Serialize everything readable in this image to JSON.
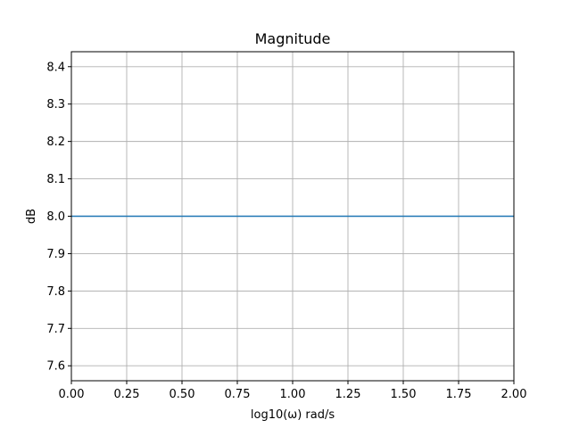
{
  "chart_data": {
    "type": "line",
    "title": "Magnitude",
    "xlabel": "log10(ω) rad/s",
    "ylabel": "dB",
    "xlim": [
      0,
      2
    ],
    "ylim": [
      7.56,
      8.44
    ],
    "xticks": [
      0.0,
      0.25,
      0.5,
      0.75,
      1.0,
      1.25,
      1.5,
      1.75,
      2.0
    ],
    "xtick_labels": [
      "0.00",
      "0.25",
      "0.50",
      "0.75",
      "1.00",
      "1.25",
      "1.50",
      "1.75",
      "2.00"
    ],
    "yticks": [
      7.6,
      7.7,
      7.8,
      7.9,
      8.0,
      8.1,
      8.2,
      8.3,
      8.4
    ],
    "ytick_labels": [
      "7.6",
      "7.7",
      "7.8",
      "7.9",
      "8.0",
      "8.1",
      "8.2",
      "8.3",
      "8.4"
    ],
    "grid": true,
    "series": [
      {
        "color": "#1f77b4",
        "x": [
          0,
          2
        ],
        "y": [
          8.0,
          8.0
        ]
      }
    ]
  }
}
